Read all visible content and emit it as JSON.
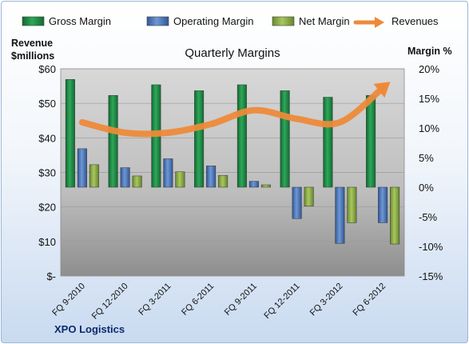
{
  "chart_data": {
    "type": "bar",
    "title": "Quarterly Margins",
    "categories": [
      "FQ 9-2010",
      "FQ 12-2010",
      "FQ 3-2011",
      "FQ 6-2011",
      "FQ 9-2011",
      "FQ 12-2011",
      "FQ 3-2012",
      "FQ 6-2012"
    ],
    "series": [
      {
        "name": "Gross Margin",
        "axis": "right",
        "values": [
          18.2,
          15.5,
          17.3,
          16.3,
          17.3,
          16.3,
          15.2,
          15.5
        ],
        "color": "#1f8a43"
      },
      {
        "name": "Operating Margin",
        "axis": "right",
        "values": [
          6.5,
          3.3,
          4.8,
          3.6,
          1.0,
          -5.3,
          -9.5,
          -6.0
        ],
        "color": "#4f7cc0"
      },
      {
        "name": "Net Margin",
        "axis": "right",
        "values": [
          3.8,
          1.9,
          2.6,
          2.0,
          0.4,
          -3.2,
          -6.0,
          -9.6
        ],
        "color": "#8faf45"
      },
      {
        "name": "Revenues",
        "axis": "left",
        "type": "line",
        "values": [
          44.5,
          41.5,
          41.5,
          44.0,
          48.0,
          45.5,
          44.5,
          54.5
        ],
        "color": "#ed8a3a"
      }
    ],
    "left_axis": {
      "label_line1": "Revenue",
      "label_line2": "$millions",
      "range": [
        0,
        60
      ],
      "ticks": [
        {
          "value": 0,
          "label": "$-"
        },
        {
          "value": 10,
          "label": "$10"
        },
        {
          "value": 20,
          "label": "$20"
        },
        {
          "value": 30,
          "label": "$30"
        },
        {
          "value": 40,
          "label": "$40"
        },
        {
          "value": 50,
          "label": "$50"
        },
        {
          "value": 60,
          "label": "$60"
        }
      ]
    },
    "right_axis": {
      "label": "Margin %",
      "range": [
        -15,
        20
      ],
      "ticks": [
        {
          "value": -15,
          "label": "-15%"
        },
        {
          "value": -10,
          "label": "-10%"
        },
        {
          "value": -5,
          "label": "-5%"
        },
        {
          "value": 0,
          "label": "0%"
        },
        {
          "value": 5,
          "label": "5%"
        },
        {
          "value": 10,
          "label": "10%"
        },
        {
          "value": 15,
          "label": "15%"
        },
        {
          "value": 20,
          "label": "20%"
        }
      ]
    },
    "legend_position": "top",
    "grid": true
  },
  "footer": {
    "company": "XPO Logistics"
  }
}
